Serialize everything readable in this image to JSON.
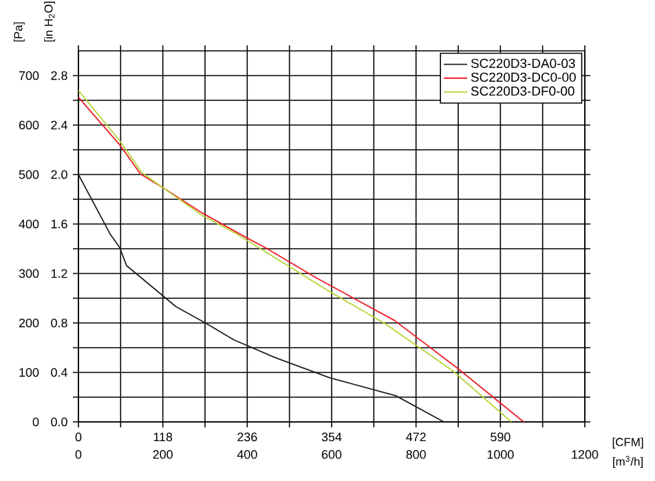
{
  "chart_data": {
    "type": "line",
    "xlabel": "[m$^{3}$/h]",
    "x2label": "[CFM]",
    "ylabel": "[Pa]",
    "y2label": "[in H$_{2}$O]",
    "xlim": [
      0,
      1200
    ],
    "xticks": [
      0,
      {
        "value": 100,
        "label": null
      },
      200,
      {
        "value": 300,
        "label": null
      },
      400,
      {
        "value": 500,
        "label": null
      },
      600,
      {
        "value": 700,
        "label": null
      },
      800,
      {
        "value": 900,
        "label": null
      },
      1000,
      {
        "value": 1100,
        "label": null
      },
      1200
    ],
    "x2lim": [
      0,
      708
    ],
    "x2ticks": [
      0,
      118,
      236,
      354,
      472,
      590
    ],
    "ylim": [
      0,
      750
    ],
    "yticks": [
      0,
      {
        "value": 50,
        "label": null
      },
      100,
      {
        "value": 150,
        "label": null
      },
      200,
      {
        "value": 250,
        "label": null
      },
      300,
      {
        "value": 350,
        "label": null
      },
      400,
      {
        "value": 450,
        "label": null
      },
      500,
      {
        "value": 550,
        "label": null
      },
      600,
      {
        "value": 650,
        "label": null
      },
      700
    ],
    "y2lim": [
      0,
      3.0
    ],
    "y2ticks": [
      {
        "value": 0,
        "label": "0.0"
      },
      0.4,
      0.8,
      1.2,
      1.6,
      {
        "value": 2.0,
        "label": "2.0"
      },
      2.4,
      2.8
    ],
    "grid": true,
    "legend": "top right",
    "series": [
      {
        "name": "SC220D3-DA0-03",
        "color": "#231f20",
        "x": [
          0,
          75,
          98,
          114,
          231,
          303,
          368,
          466,
          596,
          752,
          866
        ],
        "values": [
          500,
          380,
          352,
          316,
          233,
          199,
          166,
          130,
          89,
          53,
          0
        ]
      },
      {
        "name": "SC220D3-DC0-00",
        "color": "#ee1c25",
        "x": [
          0,
          98,
          147,
          199,
          296,
          401,
          443,
          564,
          749,
          899,
          1055
        ],
        "values": [
          656,
          560,
          501,
          474,
          421,
          371,
          352,
          291,
          205,
          108,
          0
        ]
      },
      {
        "name": "SC220D3-DF0-00",
        "color": "#b5d334",
        "x": [
          0,
          98,
          150,
          199,
          296,
          375,
          596,
          726,
          889,
          1026
        ],
        "values": [
          670,
          568,
          504,
          474,
          416,
          380,
          263,
          199,
          102,
          0
        ]
      }
    ]
  }
}
